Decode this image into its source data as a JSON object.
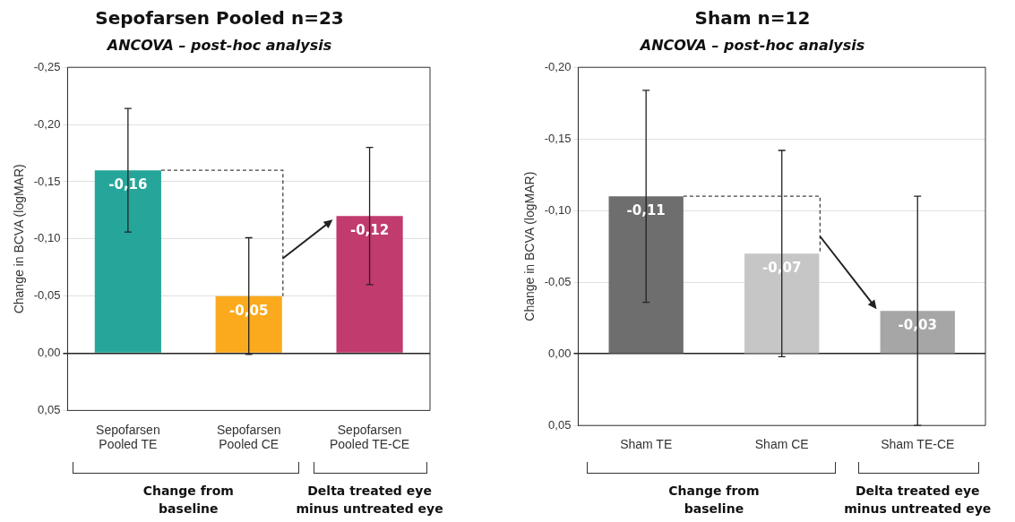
{
  "chart_data": [
    {
      "type": "bar",
      "title": "Sepofarsen Pooled n=23",
      "subtitle": "ANCOVA – post-hoc analysis",
      "ylabel": "Change in BCVA (logMAR)",
      "categories": [
        "Sepofarsen Pooled TE",
        "Sepofarsen Pooled CE",
        "Sepofarsen Pooled TE-CE"
      ],
      "values": [
        -0.16,
        -0.05,
        -0.12
      ],
      "colors": [
        "#26a69a",
        "#fbaa1e",
        "#c13b6f"
      ],
      "errors": [
        0.054,
        0.051,
        0.06
      ],
      "value_labels": [
        "-0,16",
        "-0,05",
        "-0,12"
      ],
      "ylim": [
        0.05,
        -0.25
      ],
      "yticks": [
        {
          "value": -0.25,
          "label": "-0,25"
        },
        {
          "value": -0.2,
          "label": "-0,20"
        },
        {
          "value": -0.15,
          "label": "-0,15"
        },
        {
          "value": -0.1,
          "label": "-0,10"
        },
        {
          "value": -0.05,
          "label": "-0,05"
        },
        {
          "value": 0,
          "label": "0,00"
        },
        {
          "value": 0.05,
          "label": "0,05"
        }
      ],
      "grid": "y",
      "legend": false,
      "annotations": [
        "Change from baseline",
        "Delta treated eye minus untreated eye"
      ]
    },
    {
      "type": "bar",
      "title": "Sham n=12",
      "subtitle": "ANCOVA – post-hoc analysis",
      "ylabel": "Change in BCVA (logMAR)",
      "categories": [
        "Sham TE",
        "Sham CE",
        "Sham TE-CE"
      ],
      "values": [
        -0.11,
        -0.07,
        -0.03
      ],
      "colors": [
        "#6e6e6e",
        "#c6c6c6",
        "#a6a6a6"
      ],
      "errors": [
        0.074,
        0.072,
        0.08
      ],
      "value_labels": [
        "-0,11",
        "-0,07",
        "-0,03"
      ],
      "ylim": [
        0.05,
        -0.2
      ],
      "yticks": [
        {
          "value": -0.2,
          "label": "-0,20"
        },
        {
          "value": -0.15,
          "label": "-0,15"
        },
        {
          "value": -0.1,
          "label": "-0,10"
        },
        {
          "value": -0.05,
          "label": "-0,05"
        },
        {
          "value": 0,
          "label": "0,00"
        },
        {
          "value": 0.05,
          "label": "0,05"
        }
      ],
      "grid": "y",
      "legend": false,
      "annotations": [
        "Change from baseline",
        "Delta treated eye minus untreated eye"
      ]
    }
  ]
}
